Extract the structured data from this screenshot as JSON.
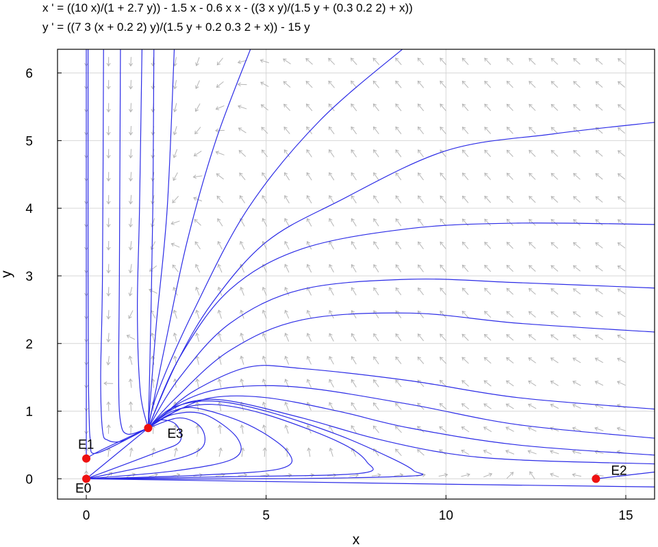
{
  "title_lines": [
    "x ' = ((10 x)/(1 + 2.7 y)) - 1.5 x - 0.6 x x - ((3 x y)/(1.5 y + (0.3 0.2 2) + x))",
    "y ' = ((7 3 (x + 0.2 2) y)/(1.5 y + 0.2 0.3 2 + x)) - 15 y"
  ],
  "chart_data": {
    "type": "phase_portrait",
    "xlabel": "x",
    "ylabel": "y",
    "xlim": [
      -0.8,
      15.8
    ],
    "ylim": [
      -0.3,
      6.35
    ],
    "xticks": [
      0,
      5,
      10,
      15
    ],
    "yticks": [
      0,
      1,
      2,
      3,
      4,
      5,
      6
    ],
    "grid": true,
    "vector_field_color": "#b4b4b4",
    "trajectory_color": "#2a2ae6",
    "equilibrium_color": "#ee1111",
    "equilibria": [
      {
        "label": "E0",
        "x": 0.0,
        "y": 0.0
      },
      {
        "label": "E1",
        "x": 0.0,
        "y": 0.3
      },
      {
        "label": "E2",
        "x": 14.17,
        "y": 0.0
      },
      {
        "label": "E3",
        "x": 1.72,
        "y": 0.75
      }
    ],
    "trajectories": [
      [
        [
          0.05,
          6.4
        ],
        [
          0.05,
          3
        ],
        [
          0.06,
          1.5
        ],
        [
          0.08,
          0.9
        ],
        [
          0.12,
          0.55
        ],
        [
          0.3,
          0.38
        ],
        [
          1.72,
          0.75
        ]
      ],
      [
        [
          0.48,
          6.4
        ],
        [
          0.45,
          3
        ],
        [
          0.4,
          1.5
        ],
        [
          0.45,
          0.72
        ],
        [
          0.6,
          0.57
        ],
        [
          1.0,
          0.56
        ],
        [
          1.72,
          0.75
        ]
      ],
      [
        [
          0.95,
          6.4
        ],
        [
          0.92,
          3
        ],
        [
          0.9,
          1.5
        ],
        [
          0.95,
          0.85
        ],
        [
          1.15,
          0.66
        ],
        [
          1.72,
          0.75
        ]
      ],
      [
        [
          1.55,
          6.4
        ],
        [
          1.48,
          4
        ],
        [
          1.42,
          2.5
        ],
        [
          1.5,
          1.3
        ],
        [
          1.72,
          0.75
        ]
      ],
      [
        [
          1.88,
          6.4
        ],
        [
          1.85,
          4
        ],
        [
          1.8,
          2.5
        ],
        [
          1.75,
          1.3
        ],
        [
          1.72,
          0.75
        ]
      ],
      [
        [
          2.45,
          6.4
        ],
        [
          2.25,
          4
        ],
        [
          1.95,
          2.3
        ],
        [
          1.72,
          0.75
        ]
      ],
      [
        [
          4.6,
          6.4
        ],
        [
          3.6,
          5
        ],
        [
          2.8,
          3.5
        ],
        [
          2.2,
          2
        ],
        [
          1.72,
          0.75
        ]
      ],
      [
        [
          8.9,
          6.4
        ],
        [
          6.5,
          5.3
        ],
        [
          4.5,
          4
        ],
        [
          3,
          2.5
        ],
        [
          2,
          1.3
        ],
        [
          1.72,
          0.75
        ]
      ],
      [
        [
          15.8,
          5.27
        ],
        [
          13,
          5.1
        ],
        [
          10,
          4.85
        ],
        [
          7,
          4.1
        ],
        [
          5,
          3.5
        ],
        [
          3.5,
          2.6
        ],
        [
          2.5,
          1.7
        ],
        [
          1.72,
          0.75
        ]
      ],
      [
        [
          15.8,
          3.76
        ],
        [
          12,
          3.78
        ],
        [
          9,
          3.7
        ],
        [
          6,
          3.4
        ],
        [
          4,
          2.8
        ],
        [
          2.6,
          1.8
        ],
        [
          1.72,
          0.75
        ]
      ],
      [
        [
          15.8,
          2.82
        ],
        [
          12,
          2.9
        ],
        [
          9,
          2.95
        ],
        [
          6,
          2.8
        ],
        [
          4,
          2.3
        ],
        [
          2.6,
          1.5
        ],
        [
          1.72,
          0.75
        ]
      ],
      [
        [
          15.8,
          2.17
        ],
        [
          12,
          2.3
        ],
        [
          9,
          2.45
        ],
        [
          6,
          2.35
        ],
        [
          4,
          1.9
        ],
        [
          2.5,
          1.2
        ],
        [
          1.72,
          0.75
        ]
      ],
      [
        [
          15.8,
          1.03
        ],
        [
          12,
          1.2
        ],
        [
          9,
          1.45
        ],
        [
          6,
          1.63
        ],
        [
          4.5,
          1.65
        ],
        [
          3,
          1.3
        ],
        [
          2.1,
          0.92
        ],
        [
          1.72,
          0.75
        ]
      ],
      [
        [
          15.8,
          0.6
        ],
        [
          12,
          0.8
        ],
        [
          9,
          1.1
        ],
        [
          6,
          1.35
        ],
        [
          4,
          1.35
        ],
        [
          2.7,
          1.15
        ],
        [
          1.72,
          0.75
        ]
      ],
      [
        [
          15.8,
          0.35
        ],
        [
          12,
          0.5
        ],
        [
          9,
          0.75
        ],
        [
          7,
          1.0
        ],
        [
          5,
          1.2
        ],
        [
          3.5,
          1.2
        ],
        [
          2.5,
          1.0
        ],
        [
          1.72,
          0.75
        ]
      ],
      [
        [
          15.8,
          0.22
        ],
        [
          12,
          0.28
        ],
        [
          10,
          0.38
        ],
        [
          8,
          0.6
        ],
        [
          6,
          0.9
        ],
        [
          4,
          1.15
        ],
        [
          3,
          1.15
        ],
        [
          2.3,
          1.0
        ],
        [
          1.72,
          0.75
        ]
      ],
      [
        [
          0.0,
          0.0
        ],
        [
          5,
          0.0
        ],
        [
          9,
          0.04
        ],
        [
          9.1,
          0.12
        ],
        [
          8.5,
          0.3
        ],
        [
          7,
          0.65
        ],
        [
          5,
          1.0
        ],
        [
          3.5,
          1.15
        ],
        [
          2.4,
          1.05
        ],
        [
          1.72,
          0.75
        ]
      ],
      [
        [
          0.0,
          0.0
        ],
        [
          4,
          0.03
        ],
        [
          7.6,
          0.08
        ],
        [
          7.8,
          0.25
        ],
        [
          7,
          0.55
        ],
        [
          5,
          0.95
        ],
        [
          3.5,
          1.1
        ],
        [
          2.4,
          1.0
        ],
        [
          1.72,
          0.75
        ]
      ],
      [
        [
          0.0,
          0.0
        ],
        [
          3,
          0.05
        ],
        [
          5.4,
          0.15
        ],
        [
          5.6,
          0.4
        ],
        [
          4.5,
          0.8
        ],
        [
          3,
          1.05
        ],
        [
          2.3,
          0.95
        ],
        [
          1.72,
          0.75
        ]
      ],
      [
        [
          0.0,
          0.0
        ],
        [
          2.5,
          0.12
        ],
        [
          4.1,
          0.3
        ],
        [
          4.2,
          0.6
        ],
        [
          3.3,
          0.95
        ],
        [
          2.4,
          0.95
        ],
        [
          1.72,
          0.75
        ]
      ],
      [
        [
          0.0,
          0.0
        ],
        [
          2.2,
          0.25
        ],
        [
          3.2,
          0.45
        ],
        [
          3.2,
          0.75
        ],
        [
          2.6,
          0.9
        ],
        [
          1.72,
          0.75
        ]
      ],
      [
        [
          0.0,
          0.0
        ],
        [
          1.9,
          0.38
        ],
        [
          2.6,
          0.55
        ],
        [
          2.5,
          0.8
        ],
        [
          2.05,
          0.87
        ],
        [
          1.72,
          0.75
        ]
      ],
      [
        [
          0.0,
          0.0
        ],
        [
          1.72,
          0.75
        ]
      ],
      [
        [
          0.0,
          0.3
        ],
        [
          0.4,
          0.42
        ],
        [
          1.72,
          0.75
        ]
      ],
      [
        [
          0.0,
          0.0
        ],
        [
          10,
          -0.08
        ],
        [
          15.8,
          -0.12
        ]
      ],
      [
        [
          15.8,
          0.1
        ],
        [
          14.17,
          0.0
        ]
      ],
      [
        [
          0.0,
          6.4
        ],
        [
          0.0,
          0.3
        ]
      ]
    ]
  }
}
